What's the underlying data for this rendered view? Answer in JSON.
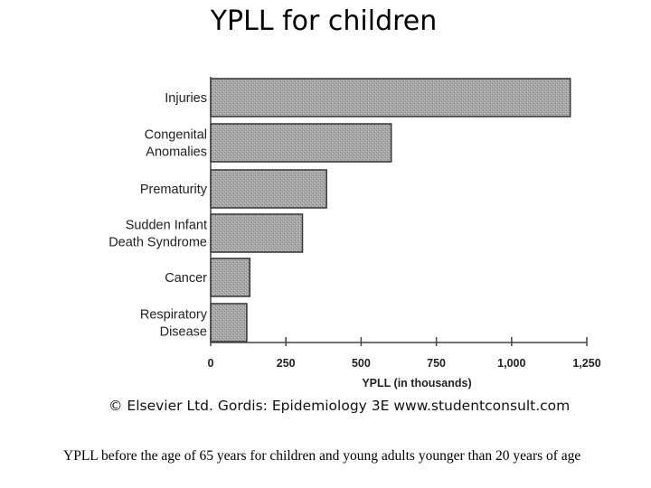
{
  "page": {
    "title": "YPLL for children",
    "credit": "© Elsevier Ltd. Gordis: Epidemiology 3E www.studentconsult.com",
    "caption": "YPLL before the age of 65 years for children and young adults younger than 20 years of age"
  },
  "chart_data": {
    "type": "bar",
    "orientation": "horizontal",
    "categories": [
      [
        "Injuries"
      ],
      [
        "Congenital",
        "Anomalies"
      ],
      [
        "Prematurity"
      ],
      [
        "Sudden Infant",
        "Death Syndrome"
      ],
      [
        "Cancer"
      ],
      [
        "Respiratory",
        "Disease"
      ]
    ],
    "values": [
      1195,
      600,
      385,
      305,
      130,
      120
    ],
    "xlabel": "YPLL (in thousands)",
    "ylabel": "",
    "xlim": [
      0,
      1250
    ],
    "xticks": [
      0,
      250,
      500,
      750,
      1000,
      1250
    ],
    "xtick_labels": [
      "0",
      "250",
      "500",
      "750",
      "1,000",
      "1,250"
    ],
    "grid": false,
    "colors": {
      "bar_fill": "#a8a8a8",
      "bar_edge": "#333333",
      "axis": "#444444"
    }
  }
}
